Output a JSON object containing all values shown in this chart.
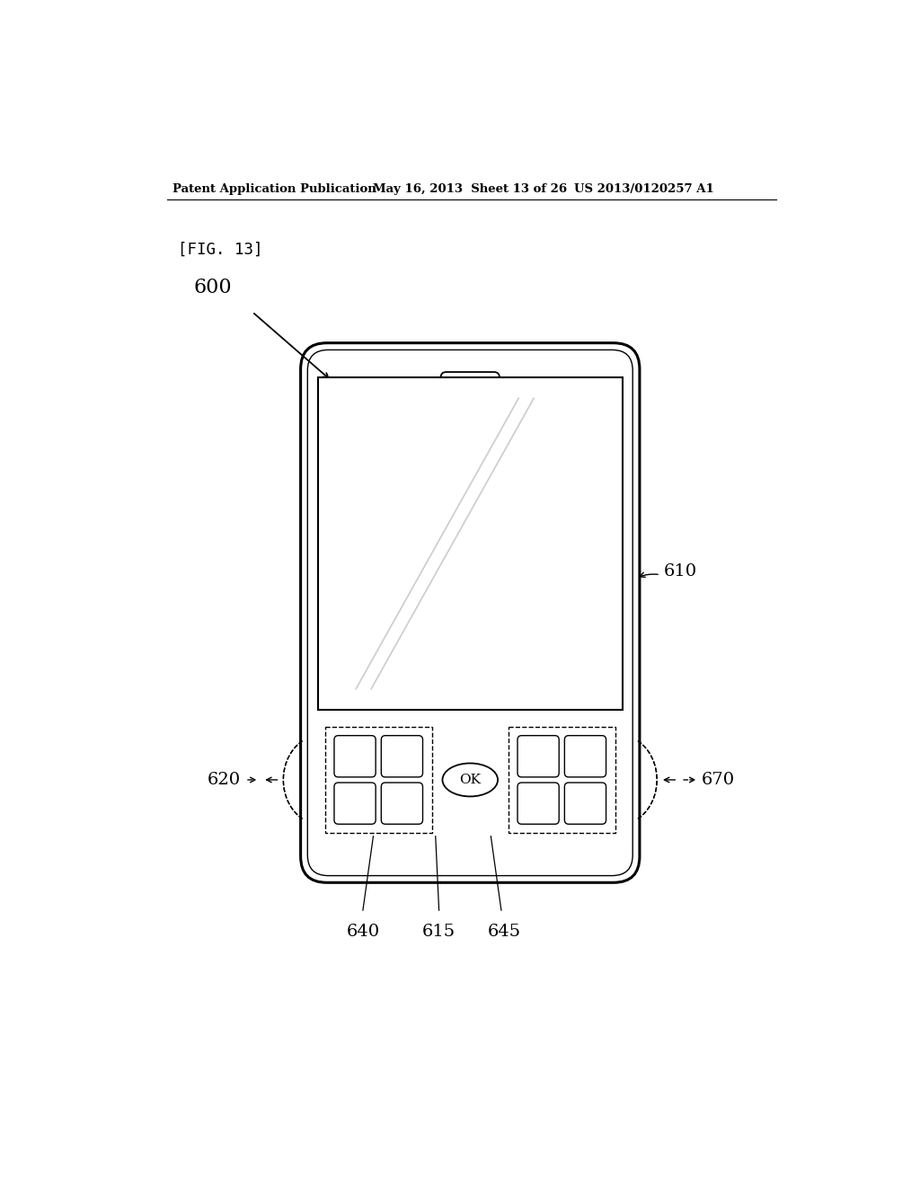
{
  "bg_color": "#ffffff",
  "header_left": "Patent Application Publication",
  "header_mid": "May 16, 2013  Sheet 13 of 26",
  "header_right": "US 2013/0120257 A1",
  "fig_label": "[FIG. 13]",
  "label_600": "600",
  "label_610": "610",
  "label_620": "620",
  "label_640": "640",
  "label_615": "615",
  "label_645": "645",
  "label_670": "670"
}
